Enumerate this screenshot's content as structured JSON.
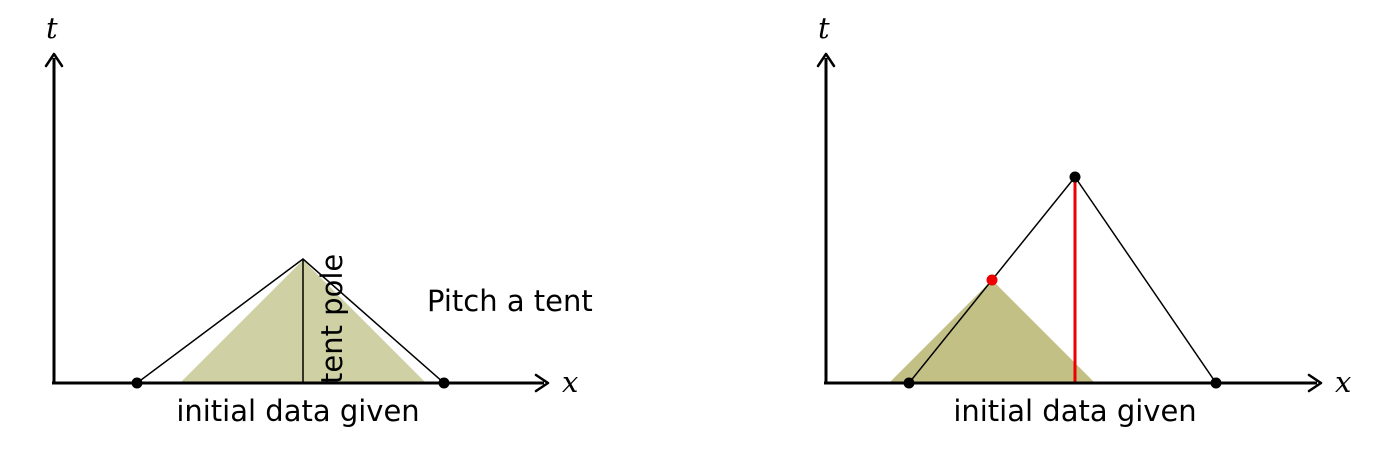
{
  "colors": {
    "tent_fill": "#cfd0a3",
    "tent_fill_dark": "#c2c084",
    "line": "#000000",
    "accent_red": "#ee0000",
    "background": "#ffffff"
  },
  "left_panel": {
    "axis_t_label": "t",
    "axis_x_label": "x",
    "pole_label": "tent pole",
    "caption": "initial data given",
    "side_text": "Pitch a tent"
  },
  "right_panel": {
    "axis_t_label": "t",
    "axis_x_label": "x",
    "caption": "initial data given"
  }
}
